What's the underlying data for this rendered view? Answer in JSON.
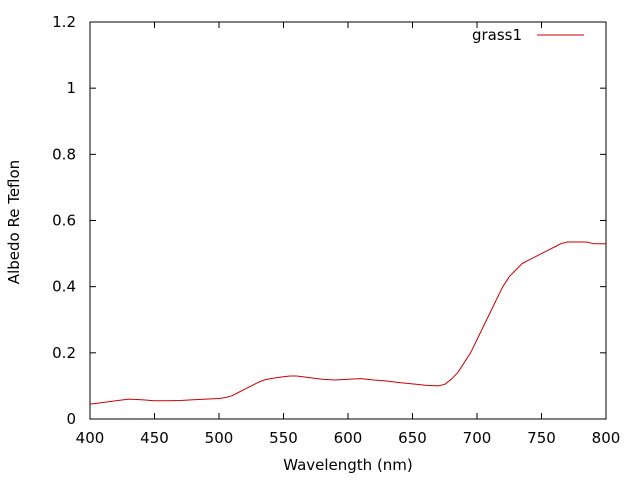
{
  "chart_data": {
    "type": "line",
    "xlabel": "Wavelength (nm)",
    "ylabel": "Albedo Re Teflon",
    "xlim": [
      400,
      800
    ],
    "ylim": [
      0,
      1.2
    ],
    "x_ticks": [
      400,
      450,
      500,
      550,
      600,
      650,
      700,
      750,
      800
    ],
    "y_ticks": [
      0,
      0.2,
      0.4,
      0.6,
      0.8,
      1.0,
      1.2
    ],
    "x_tick_labels": [
      "400",
      "450",
      "500",
      "550",
      "600",
      "650",
      "700",
      "750",
      "800"
    ],
    "y_tick_labels": [
      "0",
      "0.2",
      "0.4",
      "0.6",
      "0.8",
      "1",
      "1.2"
    ],
    "grid": false,
    "legend_position": "top-right",
    "series": [
      {
        "name": "grass1",
        "color": "#cc0000",
        "x": [
          400,
          410,
          420,
          430,
          440,
          450,
          460,
          470,
          480,
          490,
          500,
          505,
          510,
          515,
          520,
          525,
          530,
          535,
          540,
          545,
          550,
          555,
          560,
          565,
          570,
          580,
          590,
          600,
          610,
          620,
          630,
          640,
          650,
          660,
          670,
          675,
          680,
          685,
          690,
          695,
          700,
          705,
          710,
          715,
          720,
          725,
          730,
          735,
          740,
          745,
          750,
          755,
          760,
          765,
          770,
          775,
          780,
          785,
          790,
          795,
          800
        ],
        "y": [
          0.045,
          0.05,
          0.055,
          0.06,
          0.058,
          0.055,
          0.055,
          0.056,
          0.058,
          0.06,
          0.062,
          0.065,
          0.07,
          0.08,
          0.09,
          0.1,
          0.11,
          0.118,
          0.122,
          0.125,
          0.128,
          0.13,
          0.13,
          0.128,
          0.125,
          0.12,
          0.118,
          0.12,
          0.122,
          0.118,
          0.115,
          0.11,
          0.106,
          0.102,
          0.1,
          0.105,
          0.12,
          0.14,
          0.17,
          0.2,
          0.24,
          0.28,
          0.32,
          0.36,
          0.4,
          0.43,
          0.45,
          0.47,
          0.48,
          0.49,
          0.5,
          0.51,
          0.52,
          0.53,
          0.535,
          0.535,
          0.535,
          0.535,
          0.53,
          0.53,
          0.53
        ]
      }
    ]
  }
}
